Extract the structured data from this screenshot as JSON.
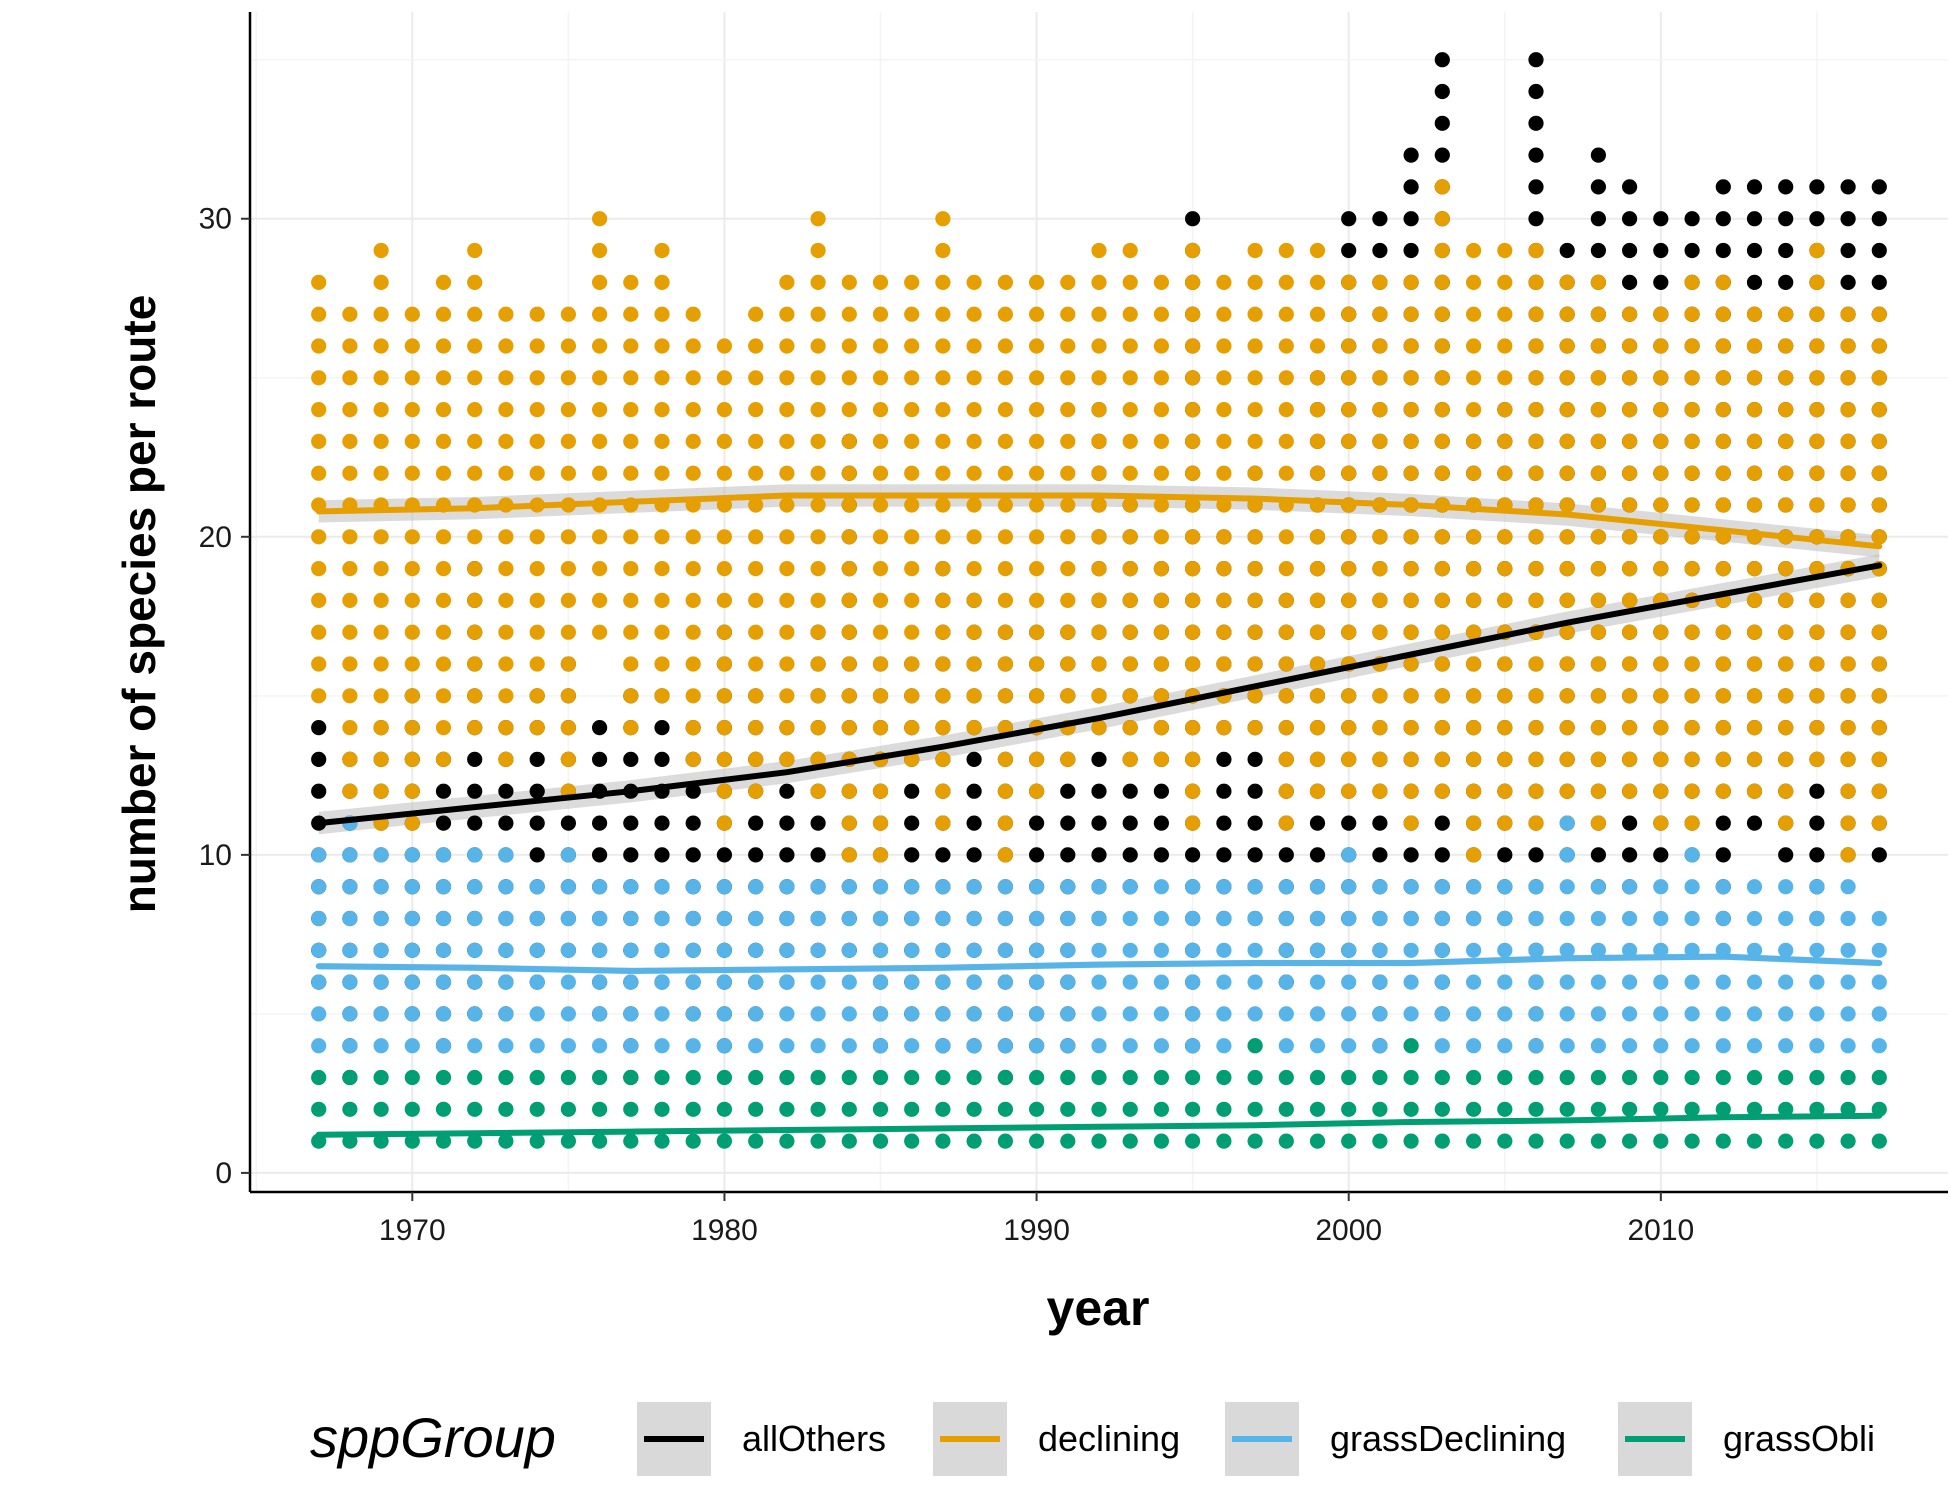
{
  "chart_data": {
    "type": "scatter",
    "xlabel": "year",
    "ylabel": "number of species per route",
    "xlim": [
      1964.8,
      2019.2
    ],
    "ylim": [
      -0.6,
      36.5
    ],
    "x_ticks": [
      1970,
      1980,
      1990,
      2000,
      2010
    ],
    "y_ticks": [
      0,
      10,
      20,
      30
    ],
    "grid": true,
    "legend": {
      "title": "sppGroup",
      "position": "bottom"
    },
    "series": [
      {
        "name": "allOthers",
        "color": "#000000",
        "trend": [
          [
            1967,
            11.0
          ],
          [
            1972,
            11.5
          ],
          [
            1977,
            12.0
          ],
          [
            1982,
            12.6
          ],
          [
            1987,
            13.4
          ],
          [
            1992,
            14.3
          ],
          [
            1997,
            15.3
          ],
          [
            2002,
            16.3
          ],
          [
            2007,
            17.3
          ],
          [
            2012,
            18.2
          ],
          [
            2017,
            19.1
          ]
        ],
        "band": 0.35,
        "ranges": [
          [
            1967,
            6,
            14
          ],
          [
            1968,
            3,
            13
          ],
          [
            1969,
            5,
            14
          ],
          [
            1970,
            5,
            15
          ],
          [
            1971,
            4,
            13
          ],
          [
            1972,
            5,
            19
          ],
          [
            1973,
            5,
            14
          ],
          [
            1974,
            6,
            15
          ],
          [
            1975,
            7,
            16
          ],
          [
            1976,
            5,
            14
          ],
          [
            1977,
            3,
            15
          ],
          [
            1978,
            6,
            15
          ],
          [
            1979,
            5,
            14
          ],
          [
            1980,
            4,
            17
          ],
          [
            1981,
            5,
            15
          ],
          [
            1982,
            6,
            14
          ],
          [
            1983,
            7,
            17
          ],
          [
            1984,
            7,
            23
          ],
          [
            1985,
            4,
            16
          ],
          [
            1986,
            5,
            16
          ],
          [
            1987,
            4,
            19
          ],
          [
            1988,
            4,
            18
          ],
          [
            1989,
            3,
            17
          ],
          [
            1990,
            4,
            17
          ],
          [
            1991,
            4,
            17
          ],
          [
            1992,
            8,
            24
          ],
          [
            1993,
            9,
            21
          ],
          [
            1994,
            10,
            19
          ],
          [
            1995,
            4,
            30
          ],
          [
            1996,
            8,
            20
          ],
          [
            1997,
            8,
            22
          ],
          [
            1998,
            6,
            18
          ],
          [
            1999,
            7,
            25
          ],
          [
            2000,
            7,
            30
          ],
          [
            2001,
            4,
            30
          ],
          [
            2002,
            8,
            32
          ],
          [
            2003,
            5,
            35
          ],
          [
            2004,
            8,
            23
          ],
          [
            2005,
            8,
            24
          ],
          [
            2006,
            4,
            35
          ],
          [
            2007,
            10,
            29
          ],
          [
            2008,
            9,
            32
          ],
          [
            2009,
            9,
            31
          ],
          [
            2010,
            10,
            30
          ],
          [
            2011,
            10,
            30
          ],
          [
            2012,
            8,
            31
          ],
          [
            2013,
            11,
            31
          ],
          [
            2014,
            10,
            31
          ],
          [
            2015,
            8,
            31
          ],
          [
            2016,
            10,
            31
          ],
          [
            2017,
            10,
            31
          ]
        ]
      },
      {
        "name": "declining",
        "color": "#E69F00",
        "trend": [
          [
            1967,
            20.8
          ],
          [
            1972,
            20.9
          ],
          [
            1977,
            21.1
          ],
          [
            1982,
            21.3
          ],
          [
            1987,
            21.3
          ],
          [
            1992,
            21.3
          ],
          [
            1997,
            21.2
          ],
          [
            2002,
            21.0
          ],
          [
            2007,
            20.7
          ],
          [
            2012,
            20.2
          ],
          [
            2017,
            19.7
          ]
        ],
        "band": 0.35,
        "ranges": [
          [
            1967,
            15,
            28
          ],
          [
            1968,
            12,
            27
          ],
          [
            1969,
            10,
            29
          ],
          [
            1970,
            11,
            27
          ],
          [
            1971,
            13,
            28
          ],
          [
            1972,
            14,
            29
          ],
          [
            1973,
            13,
            27
          ],
          [
            1974,
            14,
            27
          ],
          [
            1975,
            12,
            27
          ],
          [
            1976,
            17,
            30
          ],
          [
            1977,
            14,
            28
          ],
          [
            1978,
            15,
            29
          ],
          [
            1979,
            13,
            27
          ],
          [
            1980,
            11,
            26
          ],
          [
            1981,
            12,
            27
          ],
          [
            1982,
            13,
            28
          ],
          [
            1983,
            12,
            30
          ],
          [
            1984,
            10,
            28
          ],
          [
            1985,
            7,
            28
          ],
          [
            1986,
            13,
            28
          ],
          [
            1987,
            11,
            30
          ],
          [
            1988,
            14,
            28
          ],
          [
            1989,
            6,
            28
          ],
          [
            1990,
            12,
            28
          ],
          [
            1991,
            13,
            28
          ],
          [
            1992,
            14,
            29
          ],
          [
            1993,
            13,
            29
          ],
          [
            1994,
            13,
            28
          ],
          [
            1995,
            11,
            29
          ],
          [
            1996,
            14,
            28
          ],
          [
            1997,
            14,
            29
          ],
          [
            1998,
            11,
            29
          ],
          [
            1999,
            12,
            29
          ],
          [
            2000,
            12,
            28
          ],
          [
            2001,
            12,
            28
          ],
          [
            2002,
            11,
            28
          ],
          [
            2003,
            12,
            31
          ],
          [
            2004,
            9,
            29
          ],
          [
            2005,
            11,
            29
          ],
          [
            2006,
            11,
            29
          ],
          [
            2007,
            11,
            28
          ],
          [
            2008,
            11,
            28
          ],
          [
            2009,
            12,
            27
          ],
          [
            2010,
            11,
            27
          ],
          [
            2011,
            11,
            28
          ],
          [
            2012,
            12,
            28
          ],
          [
            2013,
            12,
            27
          ],
          [
            2014,
            11,
            27
          ],
          [
            2015,
            13,
            29
          ],
          [
            2016,
            10,
            27
          ],
          [
            2017,
            11,
            27
          ]
        ]
      },
      {
        "name": "grassDeclining",
        "color": "#56B4E9",
        "trend": [
          [
            1967,
            6.5
          ],
          [
            1972,
            6.45
          ],
          [
            1977,
            6.35
          ],
          [
            1982,
            6.4
          ],
          [
            1987,
            6.45
          ],
          [
            1992,
            6.55
          ],
          [
            1997,
            6.6
          ],
          [
            2002,
            6.6
          ],
          [
            2007,
            6.75
          ],
          [
            2012,
            6.8
          ],
          [
            2017,
            6.6
          ]
        ],
        "band": 0.1,
        "ranges": [
          [
            1967,
            4,
            10
          ],
          [
            1968,
            4,
            11
          ],
          [
            1969,
            4,
            10
          ],
          [
            1970,
            4,
            10
          ],
          [
            1971,
            4,
            10
          ],
          [
            1972,
            4,
            10
          ],
          [
            1973,
            4,
            10
          ],
          [
            1974,
            4,
            9
          ],
          [
            1975,
            4,
            10
          ],
          [
            1976,
            4,
            9
          ],
          [
            1977,
            4,
            9
          ],
          [
            1978,
            4,
            9
          ],
          [
            1979,
            4,
            9
          ],
          [
            1980,
            4,
            9
          ],
          [
            1981,
            4,
            9
          ],
          [
            1982,
            4,
            9
          ],
          [
            1983,
            4,
            9
          ],
          [
            1984,
            4,
            9
          ],
          [
            1985,
            4,
            9
          ],
          [
            1986,
            4,
            9
          ],
          [
            1987,
            4,
            9
          ],
          [
            1988,
            4,
            9
          ],
          [
            1989,
            4,
            9
          ],
          [
            1990,
            4,
            9
          ],
          [
            1991,
            4,
            9
          ],
          [
            1992,
            4,
            9
          ],
          [
            1993,
            4,
            9
          ],
          [
            1994,
            4,
            9
          ],
          [
            1995,
            4,
            9
          ],
          [
            1996,
            4,
            9
          ],
          [
            1997,
            4,
            9
          ],
          [
            1998,
            4,
            9
          ],
          [
            1999,
            4,
            9
          ],
          [
            2000,
            4,
            10
          ],
          [
            2001,
            4,
            9
          ],
          [
            2002,
            4,
            9
          ],
          [
            2003,
            4,
            9
          ],
          [
            2004,
            4,
            9
          ],
          [
            2005,
            4,
            9
          ],
          [
            2006,
            4,
            9
          ],
          [
            2007,
            4,
            11
          ],
          [
            2008,
            4,
            9
          ],
          [
            2009,
            4,
            9
          ],
          [
            2010,
            4,
            9
          ],
          [
            2011,
            4,
            10
          ],
          [
            2012,
            4,
            9
          ],
          [
            2013,
            4,
            9
          ],
          [
            2014,
            4,
            9
          ],
          [
            2015,
            4,
            9
          ],
          [
            2016,
            4,
            9
          ],
          [
            2017,
            4,
            8
          ]
        ]
      },
      {
        "name": "grassObli",
        "color": "#009E73",
        "trend": [
          [
            1967,
            1.2
          ],
          [
            1972,
            1.25
          ],
          [
            1977,
            1.3
          ],
          [
            1982,
            1.35
          ],
          [
            1987,
            1.4
          ],
          [
            1992,
            1.45
          ],
          [
            1997,
            1.5
          ],
          [
            2002,
            1.6
          ],
          [
            2007,
            1.65
          ],
          [
            2012,
            1.75
          ],
          [
            2017,
            1.8
          ]
        ],
        "band": 0.08,
        "ranges": [
          [
            1967,
            1,
            3
          ],
          [
            1968,
            1,
            3
          ],
          [
            1969,
            1,
            3
          ],
          [
            1970,
            1,
            3
          ],
          [
            1971,
            1,
            3
          ],
          [
            1972,
            1,
            3
          ],
          [
            1973,
            1,
            3
          ],
          [
            1974,
            1,
            3
          ],
          [
            1975,
            1,
            3
          ],
          [
            1976,
            1,
            3
          ],
          [
            1977,
            1,
            3
          ],
          [
            1978,
            1,
            3
          ],
          [
            1979,
            1,
            3
          ],
          [
            1980,
            1,
            3
          ],
          [
            1981,
            1,
            3
          ],
          [
            1982,
            1,
            3
          ],
          [
            1983,
            1,
            3
          ],
          [
            1984,
            1,
            3
          ],
          [
            1985,
            1,
            3
          ],
          [
            1986,
            1,
            3
          ],
          [
            1987,
            1,
            3
          ],
          [
            1988,
            1,
            3
          ],
          [
            1989,
            1,
            3
          ],
          [
            1990,
            1,
            3
          ],
          [
            1991,
            1,
            3
          ],
          [
            1992,
            1,
            3
          ],
          [
            1993,
            1,
            3
          ],
          [
            1994,
            1,
            3
          ],
          [
            1995,
            1,
            3
          ],
          [
            1996,
            1,
            3
          ],
          [
            1997,
            1,
            4
          ],
          [
            1998,
            1,
            3
          ],
          [
            1999,
            1,
            3
          ],
          [
            2000,
            1,
            3
          ],
          [
            2001,
            1,
            3
          ],
          [
            2002,
            1,
            4
          ],
          [
            2003,
            1,
            3
          ],
          [
            2004,
            1,
            3
          ],
          [
            2005,
            1,
            3
          ],
          [
            2006,
            1,
            3
          ],
          [
            2007,
            1,
            3
          ],
          [
            2008,
            1,
            3
          ],
          [
            2009,
            1,
            3
          ],
          [
            2010,
            1,
            3
          ],
          [
            2011,
            1,
            3
          ],
          [
            2012,
            1,
            3
          ],
          [
            2013,
            1,
            3
          ],
          [
            2014,
            1,
            3
          ],
          [
            2015,
            1,
            3
          ],
          [
            2016,
            1,
            3
          ],
          [
            2017,
            1,
            3
          ]
        ]
      }
    ]
  }
}
